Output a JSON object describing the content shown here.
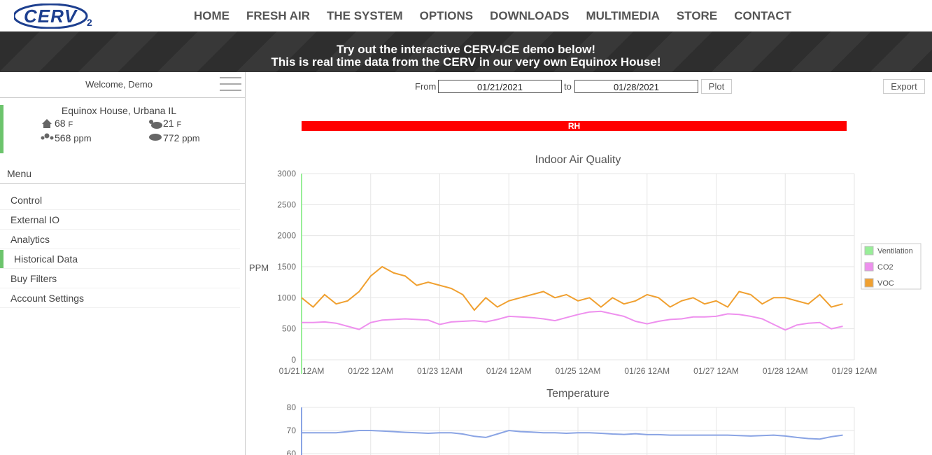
{
  "nav": {
    "logo": "CERV",
    "logo_sub": "2",
    "items": [
      "HOME",
      "FRESH AIR",
      "THE SYSTEM",
      "OPTIONS",
      "DOWNLOADS",
      "MULTIMEDIA",
      "STORE",
      "CONTACT"
    ]
  },
  "banner": {
    "lines": [
      "Try out the interactive CERV-ICE demo below!",
      "This is real time data from the CERV in our very own Equinox House!"
    ]
  },
  "sidebar": {
    "welcome": "Welcome, Demo",
    "location": "Equinox House, Urbana IL",
    "indoor_temp": "68",
    "outdoor_temp": "21",
    "temp_unit": "F",
    "indoor_co2": "568",
    "outdoor_co2": "772",
    "co2_unit": "ppm",
    "menu_title": "Menu",
    "menu": [
      "Control",
      "External IO",
      "Analytics",
      "Historical Data",
      "Buy Filters",
      "Account Settings"
    ],
    "active": 3
  },
  "controls": {
    "from_label": "From",
    "from_date": "01/21/2021",
    "to_label": "to",
    "to_date": "01/28/2021",
    "plot": "Plot",
    "export": "Export",
    "rh": "RH"
  },
  "chart_data": [
    {
      "type": "line",
      "title": "Indoor Air Quality",
      "y_label": "PPM",
      "categories": [
        "01/21 12AM",
        null,
        null,
        null,
        null,
        null,
        "01/22 12AM",
        null,
        null,
        null,
        null,
        null,
        "01/23 12AM",
        null,
        null,
        null,
        null,
        null,
        "01/24 12AM",
        null,
        null,
        null,
        null,
        null,
        "01/25 12AM",
        null,
        null,
        null,
        null,
        null,
        "01/26 12AM",
        null,
        null,
        null,
        null,
        null,
        "01/27 12AM",
        null,
        null,
        null,
        null,
        null,
        "01/28 12AM",
        null,
        null,
        null,
        null,
        null,
        "01/29 12AM"
      ],
      "series": [
        {
          "name": "Ventilation",
          "color": "#98ee98",
          "values": [
            null,
            null,
            null,
            null,
            null,
            null,
            null,
            null,
            null,
            null,
            null,
            null,
            null,
            null,
            null,
            null,
            null,
            null,
            null,
            null,
            null,
            null,
            null,
            null,
            null,
            null,
            null,
            null,
            null,
            null,
            null,
            null,
            null,
            null,
            null,
            null,
            null,
            null,
            null,
            null,
            null,
            null,
            null,
            null,
            null,
            null,
            null,
            null,
            null
          ]
        },
        {
          "name": "CO2",
          "color": "#ee90ee",
          "values": [
            600,
            600,
            610,
            590,
            540,
            490,
            600,
            640,
            650,
            660,
            650,
            640,
            570,
            610,
            620,
            630,
            610,
            650,
            700,
            690,
            680,
            660,
            630,
            680,
            730,
            770,
            780,
            740,
            700,
            620,
            580,
            620,
            650,
            660,
            690,
            690,
            700,
            740,
            730,
            700,
            660,
            570,
            480,
            560,
            590,
            600,
            500,
            540,
            null
          ]
        },
        {
          "name": "VOC",
          "color": "#f0a030",
          "values": [
            1000,
            850,
            1050,
            900,
            950,
            1100,
            1350,
            1500,
            1400,
            1350,
            1200,
            1250,
            1200,
            1150,
            1050,
            800,
            1000,
            850,
            950,
            1000,
            1050,
            1100,
            1000,
            1050,
            950,
            1000,
            850,
            1000,
            900,
            950,
            1050,
            1000,
            850,
            950,
            1000,
            900,
            950,
            850,
            1100,
            1050,
            900,
            1000,
            1000,
            950,
            900,
            1050,
            850,
            900,
            null
          ]
        }
      ],
      "ylim": [
        0,
        3000
      ],
      "yticks": [
        0,
        500,
        1000,
        1500,
        2000,
        2500,
        3000
      ],
      "grid": true,
      "legend": "right"
    },
    {
      "type": "line",
      "title": "Temperature",
      "color": "#8aa4e4",
      "values": [
        69,
        69,
        69,
        69,
        69.5,
        70,
        70,
        69.8,
        69.5,
        69.2,
        69,
        68.8,
        69,
        69,
        68.5,
        67.5,
        67,
        68.5,
        70,
        69.5,
        69.3,
        69,
        69,
        68.8,
        69,
        69,
        68.8,
        68.5,
        68.3,
        68.6,
        68.2,
        68.2,
        68,
        68,
        68,
        68,
        68,
        68,
        67.8,
        67.6,
        67.8,
        68,
        67.6,
        67,
        66.5,
        66.3,
        67.3,
        68,
        null
      ],
      "ylim": [
        60,
        80
      ],
      "yticks": [
        60,
        70,
        80
      ],
      "grid": true
    }
  ]
}
